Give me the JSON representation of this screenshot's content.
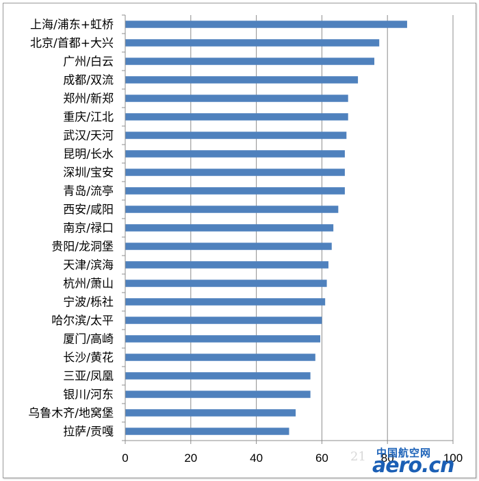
{
  "chart_data": {
    "type": "bar",
    "orientation": "horizontal",
    "categories": [
      "上海/浦东+虹桥",
      "北京/首都+大兴",
      "广州/白云",
      "成都/双流",
      "郑州/新郑",
      "重庆/江北",
      "武汉/天河",
      "昆明/长水",
      "深圳/宝安",
      "青岛/流亭",
      "西安/咸阳",
      "南京/禄口",
      "贵阳/龙洞堡",
      "天津/滨海",
      "杭州/萧山",
      "宁波/栎社",
      "哈尔滨/太平",
      "厦门/高崎",
      "长沙/黄花",
      "三亚/凤凰",
      "银川/河东",
      "乌鲁木齐/地窝堡",
      "拉萨/贡嘎"
    ],
    "values": [
      86,
      77.5,
      76,
      71,
      68,
      68,
      67.5,
      67,
      67,
      67,
      65,
      63.5,
      63,
      62,
      61.5,
      61,
      60,
      59.5,
      58,
      56.5,
      56.5,
      52,
      50
    ],
    "x_ticks": [
      "0",
      "20",
      "40",
      "60",
      "80",
      "100"
    ],
    "xlim": [
      0,
      100
    ],
    "grid": "vertical",
    "bar_color": "#4f81bd",
    "title": "",
    "xlabel": "",
    "ylabel": ""
  },
  "watermark": {
    "faint_text": "21",
    "cn_text": "中国航空网",
    "en_text": "aero.cn",
    "color": "#1b5fb5"
  }
}
